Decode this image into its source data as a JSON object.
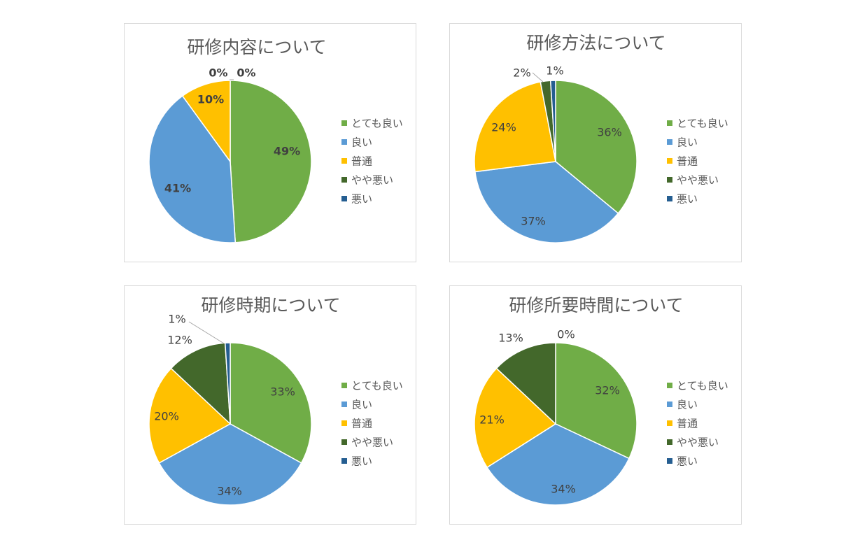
{
  "colors": {
    "とても良い": "#70ad47",
    "良い": "#5b9bd5",
    "普通": "#ffc000",
    "やや悪い": "#43682b",
    "悪い": "#255e91"
  },
  "legend": [
    "とても良い",
    "良い",
    "普通",
    "やや悪い",
    "悪い"
  ],
  "chart_data": [
    {
      "type": "pie",
      "title": "研修内容について",
      "categories": [
        "とても良い",
        "良い",
        "普通",
        "やや悪い",
        "悪い"
      ],
      "values": [
        49,
        41,
        10,
        0,
        0
      ],
      "labels": [
        "49%",
        "41%",
        "10%",
        "0%",
        "0%"
      ]
    },
    {
      "type": "pie",
      "title": "研修方法について",
      "categories": [
        "とても良い",
        "良い",
        "普通",
        "やや悪い",
        "悪い"
      ],
      "values": [
        36,
        37,
        24,
        2,
        1
      ],
      "labels": [
        "36%",
        "37%",
        "24%",
        "2%",
        "1%"
      ]
    },
    {
      "type": "pie",
      "title": "研修時期について",
      "categories": [
        "とても良い",
        "良い",
        "普通",
        "やや悪い",
        "悪い"
      ],
      "values": [
        33,
        34,
        20,
        12,
        1
      ],
      "labels": [
        "33%",
        "34%",
        "20%",
        "12%",
        "1%"
      ]
    },
    {
      "type": "pie",
      "title": "研修所要時間について",
      "categories": [
        "とても良い",
        "良い",
        "普通",
        "やや悪い",
        "悪い"
      ],
      "values": [
        32,
        34,
        21,
        13,
        0
      ],
      "labels": [
        "32%",
        "34%",
        "21%",
        "13%",
        "0%"
      ]
    }
  ]
}
